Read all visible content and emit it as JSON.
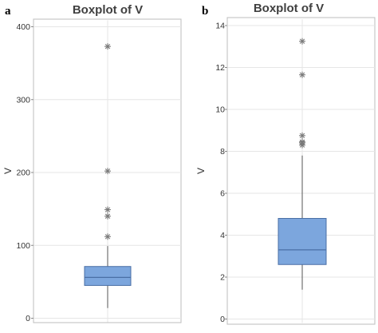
{
  "chart_data": [
    {
      "type": "box",
      "panel": "a",
      "title": "Boxplot of V",
      "ylabel": "V",
      "ylim": [
        0,
        400
      ],
      "yticks": [
        0,
        100,
        200,
        300,
        400
      ],
      "box": {
        "whisker_low": 14,
        "q1": 45,
        "median": 56,
        "q3": 71,
        "whisker_high": 99
      },
      "outliers": [
        112,
        140,
        149,
        202,
        373
      ],
      "colors": {
        "box": "#7ca6dd",
        "box_edge": "#4a6fa5",
        "outlier": "#7a7a7a"
      }
    },
    {
      "type": "box",
      "panel": "b",
      "title": "Boxplot of V",
      "ylabel": "V",
      "ylim": [
        0,
        14
      ],
      "yticks": [
        0,
        2,
        4,
        6,
        8,
        10,
        12,
        14
      ],
      "box": {
        "whisker_low": 1.4,
        "q1": 2.6,
        "median": 3.3,
        "q3": 4.8,
        "whisker_high": 7.8
      },
      "outliers": [
        8.3,
        8.4,
        8.45,
        8.75,
        11.65,
        13.25
      ],
      "colors": {
        "box": "#7ca6dd",
        "box_edge": "#4a6fa5",
        "outlier": "#7a7a7a"
      }
    }
  ]
}
